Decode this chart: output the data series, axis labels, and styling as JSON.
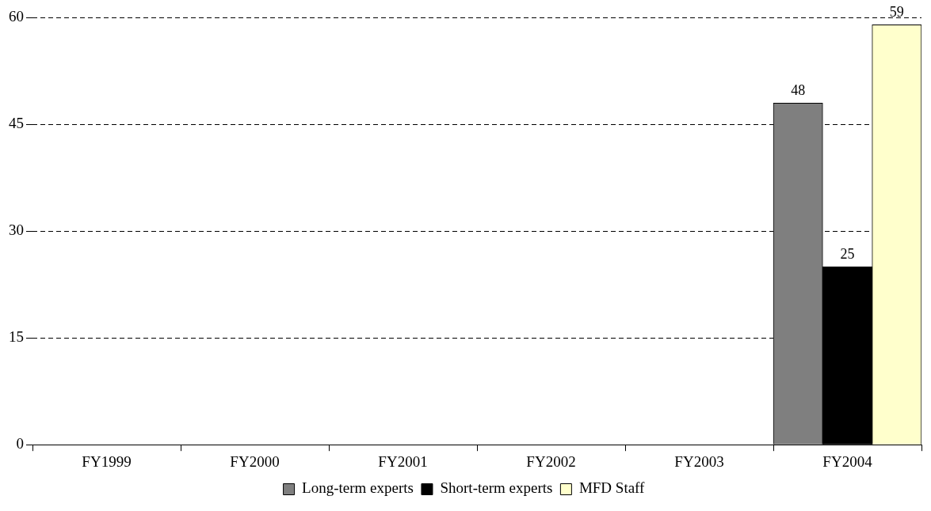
{
  "chart_data": {
    "type": "bar",
    "categories": [
      "FY1999",
      "FY2000",
      "FY2001",
      "FY2002",
      "FY2003",
      "FY2004"
    ],
    "series": [
      {
        "name": "Long-term experts",
        "color": "#7f7f7f",
        "values": [
          null,
          null,
          null,
          null,
          null,
          48
        ]
      },
      {
        "name": "Short-term experts",
        "color": "#000000",
        "values": [
          null,
          null,
          null,
          null,
          null,
          25
        ]
      },
      {
        "name": "MFD Staff",
        "color": "#ffffcc",
        "values": [
          null,
          null,
          null,
          null,
          null,
          59
        ]
      }
    ],
    "ylim": [
      0,
      60
    ],
    "yticks": [
      0,
      15,
      30,
      45,
      60
    ],
    "grid": "y",
    "legend": "bottom",
    "data_labels": true
  }
}
